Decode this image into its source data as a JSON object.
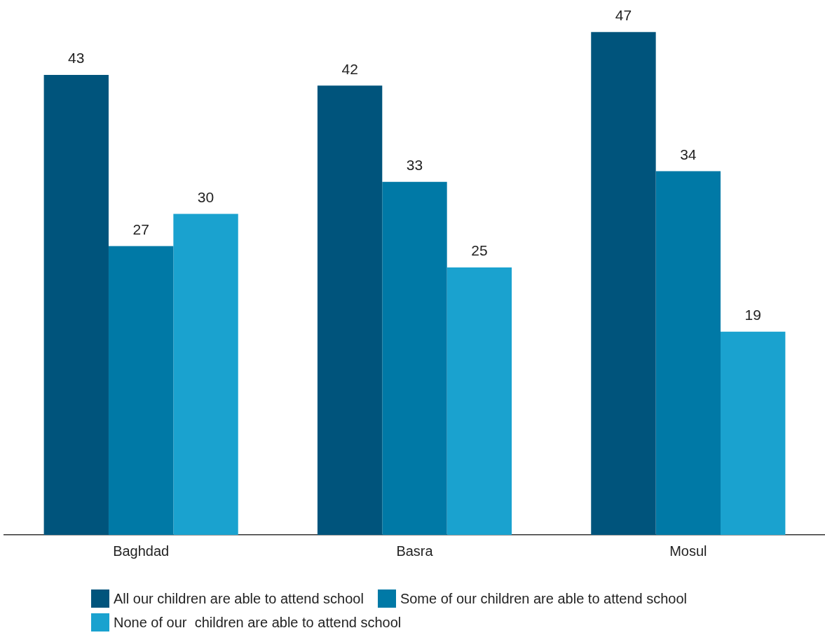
{
  "chart_data": {
    "type": "bar",
    "categories": [
      "Baghdad",
      "Basra",
      "Mosul"
    ],
    "series": [
      {
        "name": "All our children are able to attend school",
        "color": "#00547c",
        "values": [
          43,
          42,
          47
        ]
      },
      {
        "name": "Some of our children are able to attend school",
        "color": "#0079a6",
        "values": [
          27,
          33,
          34
        ]
      },
      {
        "name": "None of our  children are able to attend school",
        "color": "#1aa2cf",
        "values": [
          30,
          25,
          19
        ]
      }
    ],
    "data_labels": true,
    "grid": false,
    "legend": "bottom"
  }
}
